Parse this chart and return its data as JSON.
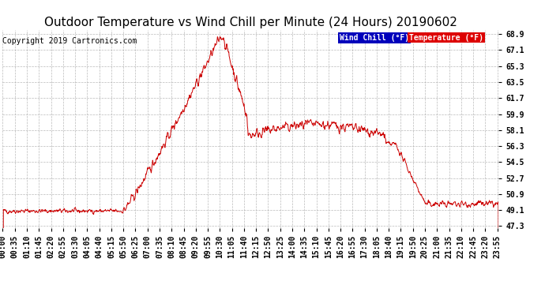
{
  "title": "Outdoor Temperature vs Wind Chill per Minute (24 Hours) 20190602",
  "copyright": "Copyright 2019 Cartronics.com",
  "ylabel_ticks": [
    47.3,
    49.1,
    50.9,
    52.7,
    54.5,
    56.3,
    58.1,
    59.9,
    61.7,
    63.5,
    65.3,
    67.1,
    68.9
  ],
  "ymin": 47.3,
  "ymax": 68.9,
  "legend_wind_chill_color": "#0000bb",
  "legend_wind_chill_label": "Wind Chill (°F)",
  "legend_temp_color": "#dd0000",
  "legend_temp_label": "Temperature (°F)",
  "line_color": "#cc0000",
  "bg_color": "#ffffff",
  "grid_color": "#aaaaaa",
  "title_fontsize": 11,
  "copyright_fontsize": 7,
  "tick_label_fontsize": 7,
  "x_tick_labels": [
    "00:00",
    "00:35",
    "01:10",
    "01:45",
    "02:20",
    "02:55",
    "03:30",
    "04:05",
    "04:40",
    "05:15",
    "05:50",
    "06:25",
    "07:00",
    "07:35",
    "08:10",
    "08:45",
    "09:20",
    "09:55",
    "10:30",
    "11:05",
    "11:40",
    "12:15",
    "12:50",
    "13:25",
    "14:00",
    "14:35",
    "15:10",
    "15:45",
    "16:20",
    "16:55",
    "17:30",
    "18:05",
    "18:40",
    "19:15",
    "19:50",
    "20:25",
    "21:00",
    "21:35",
    "22:10",
    "22:45",
    "23:20",
    "23:55"
  ]
}
